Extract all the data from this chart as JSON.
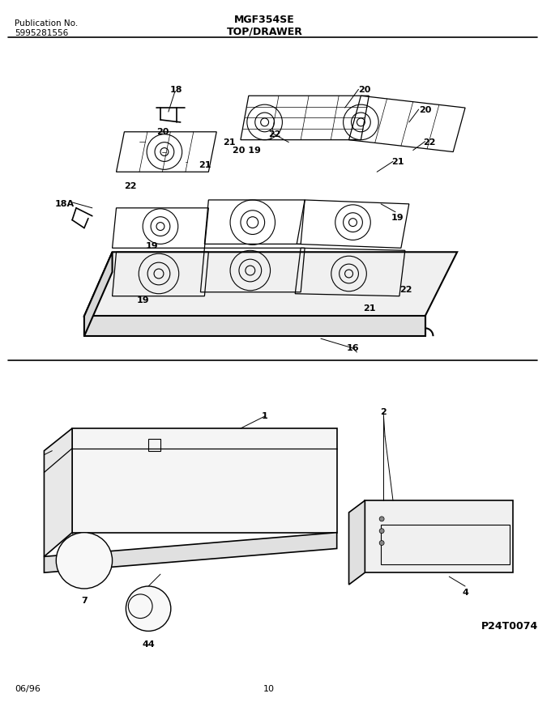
{
  "title": "MGF354SE",
  "subtitle": "TOP/DRAWER",
  "pub_no_label": "Publication No.",
  "pub_no": "5995281556",
  "diagram_code": "P24T0074",
  "footer_date": "06/96",
  "footer_page": "10",
  "bg_color": "#ffffff",
  "line_color": "#000000",
  "text_color": "#000000"
}
